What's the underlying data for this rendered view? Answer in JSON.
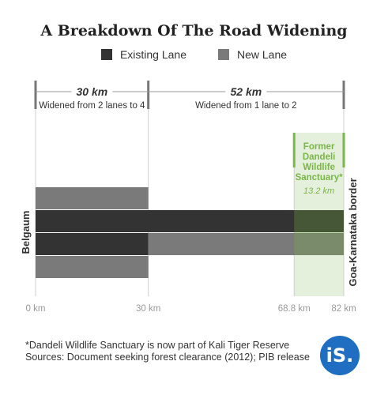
{
  "title": "A Breakdown Of The Road Widening",
  "legend": [
    {
      "label": "Existing Lane",
      "color": "#333333"
    },
    {
      "label": "New Lane",
      "color": "#7a7a7a"
    }
  ],
  "colors": {
    "existing_lane": "#333333",
    "new_lane": "#7a7a7a",
    "sanctuary": "#7ab648",
    "sanctuary_fill": "#e4f0dc",
    "dimension_line": "#888888",
    "logo": "#1f6ec1"
  },
  "segments": [
    {
      "distance": "30 km",
      "description": "Widened from 2 lanes to 4"
    },
    {
      "distance": "52 km",
      "description": "Widened from 1 lane to 2"
    }
  ],
  "sanctuary": {
    "name_lines": [
      "Former",
      "Dandeli",
      "Wildlife",
      "Sanctuary*"
    ],
    "length": "13.2 km"
  },
  "endpoints": {
    "start": "Belgaum",
    "end": "Goa-Karnataka border"
  },
  "axis_ticks": [
    {
      "km": 0,
      "label": "0 km"
    },
    {
      "km": 30,
      "label": "30 km"
    },
    {
      "km": 68.8,
      "label": "68.8 km"
    },
    {
      "km": 82,
      "label": "82 km"
    }
  ],
  "lanes": [
    {
      "row": 0,
      "from_km": 0,
      "to_km": 30,
      "kind": "new_lane"
    },
    {
      "row": 1,
      "from_km": 0,
      "to_km": 82,
      "kind": "existing_lane"
    },
    {
      "row": 2,
      "from_km": 0,
      "to_km": 30,
      "kind": "existing_lane"
    },
    {
      "row": 2,
      "from_km": 30,
      "to_km": 82,
      "kind": "new_lane"
    },
    {
      "row": 3,
      "from_km": 0,
      "to_km": 30,
      "kind": "new_lane"
    }
  ],
  "footer": {
    "note": "*Dandeli Wildlife Sanctuary is now part of Kali Tiger Reserve",
    "sources": "Sources: Document seeking forest clearance (2012); PIB release"
  },
  "logo_text": "iS."
}
